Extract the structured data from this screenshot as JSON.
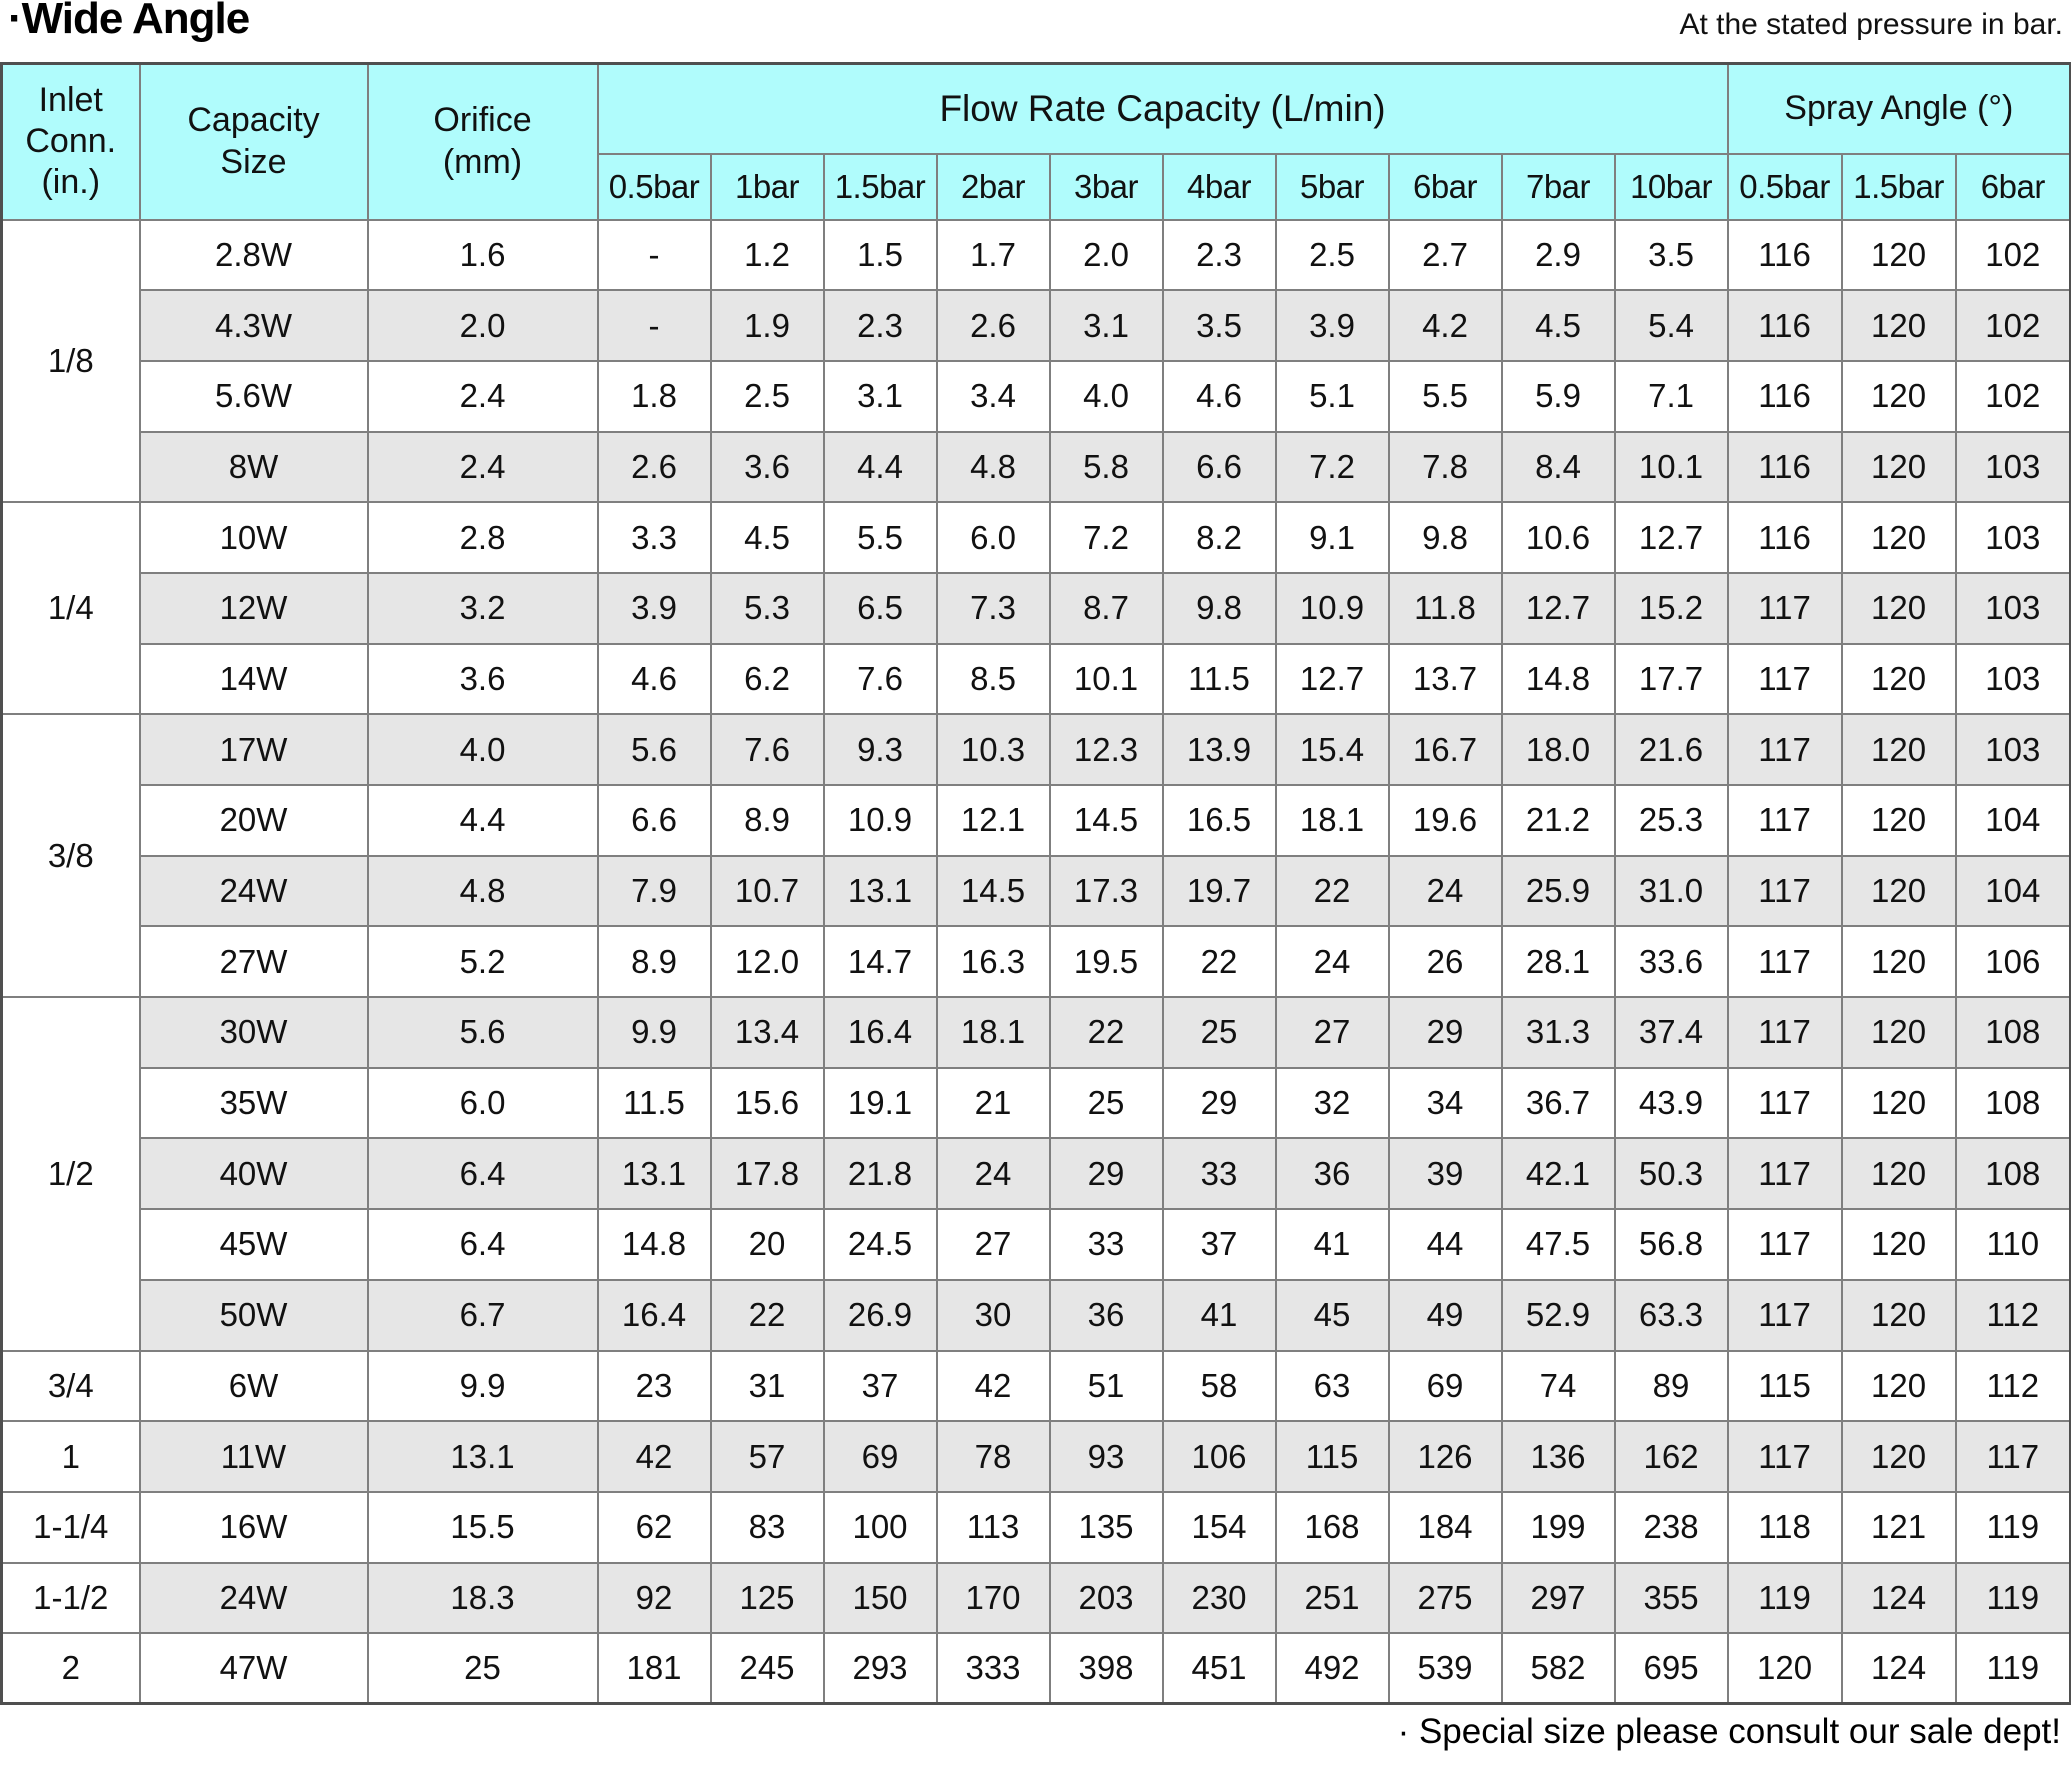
{
  "page": {
    "title": "·Wide Angle",
    "top_note": "At the stated pressure in bar.",
    "bottom_note": "· Special size please consult our sale dept!"
  },
  "colors": {
    "header_bg": "#b0fcfc",
    "stripe_bg": "#e6e6e6",
    "border": "#7f7f7f",
    "outer_border": "#4f4f4f"
  },
  "table": {
    "headers": {
      "inlet": "Inlet Conn. (in.)",
      "capacity": "Capacity Size",
      "orifice": "Orifice (mm)",
      "flow_group": "Flow Rate Capacity (L/min)",
      "spray_group": "Spray Angle (°)",
      "flow_cols": [
        "0.5bar",
        "1bar",
        "1.5bar",
        "2bar",
        "3bar",
        "4bar",
        "5bar",
        "6bar",
        "7bar",
        "10bar"
      ],
      "spray_cols": [
        "0.5bar",
        "1.5bar",
        "6bar"
      ]
    },
    "groups": [
      {
        "inlet": "1/8",
        "rows": [
          {
            "capacity": "2.8W",
            "orifice": "1.6",
            "flow": [
              "-",
              "1.2",
              "1.5",
              "1.7",
              "2.0",
              "2.3",
              "2.5",
              "2.7",
              "2.9",
              "3.5"
            ],
            "spray": [
              "116",
              "120",
              "102"
            ]
          },
          {
            "capacity": "4.3W",
            "orifice": "2.0",
            "flow": [
              "-",
              "1.9",
              "2.3",
              "2.6",
              "3.1",
              "3.5",
              "3.9",
              "4.2",
              "4.5",
              "5.4"
            ],
            "spray": [
              "116",
              "120",
              "102"
            ]
          },
          {
            "capacity": "5.6W",
            "orifice": "2.4",
            "flow": [
              "1.8",
              "2.5",
              "3.1",
              "3.4",
              "4.0",
              "4.6",
              "5.1",
              "5.5",
              "5.9",
              "7.1"
            ],
            "spray": [
              "116",
              "120",
              "102"
            ]
          },
          {
            "capacity": "8W",
            "orifice": "2.4",
            "flow": [
              "2.6",
              "3.6",
              "4.4",
              "4.8",
              "5.8",
              "6.6",
              "7.2",
              "7.8",
              "8.4",
              "10.1"
            ],
            "spray": [
              "116",
              "120",
              "103"
            ]
          }
        ]
      },
      {
        "inlet": "1/4",
        "rows": [
          {
            "capacity": "10W",
            "orifice": "2.8",
            "flow": [
              "3.3",
              "4.5",
              "5.5",
              "6.0",
              "7.2",
              "8.2",
              "9.1",
              "9.8",
              "10.6",
              "12.7"
            ],
            "spray": [
              "116",
              "120",
              "103"
            ]
          },
          {
            "capacity": "12W",
            "orifice": "3.2",
            "flow": [
              "3.9",
              "5.3",
              "6.5",
              "7.3",
              "8.7",
              "9.8",
              "10.9",
              "11.8",
              "12.7",
              "15.2"
            ],
            "spray": [
              "117",
              "120",
              "103"
            ]
          },
          {
            "capacity": "14W",
            "orifice": "3.6",
            "flow": [
              "4.6",
              "6.2",
              "7.6",
              "8.5",
              "10.1",
              "11.5",
              "12.7",
              "13.7",
              "14.8",
              "17.7"
            ],
            "spray": [
              "117",
              "120",
              "103"
            ]
          }
        ]
      },
      {
        "inlet": "3/8",
        "rows": [
          {
            "capacity": "17W",
            "orifice": "4.0",
            "flow": [
              "5.6",
              "7.6",
              "9.3",
              "10.3",
              "12.3",
              "13.9",
              "15.4",
              "16.7",
              "18.0",
              "21.6"
            ],
            "spray": [
              "117",
              "120",
              "103"
            ]
          },
          {
            "capacity": "20W",
            "orifice": "4.4",
            "flow": [
              "6.6",
              "8.9",
              "10.9",
              "12.1",
              "14.5",
              "16.5",
              "18.1",
              "19.6",
              "21.2",
              "25.3"
            ],
            "spray": [
              "117",
              "120",
              "104"
            ]
          },
          {
            "capacity": "24W",
            "orifice": "4.8",
            "flow": [
              "7.9",
              "10.7",
              "13.1",
              "14.5",
              "17.3",
              "19.7",
              "22",
              "24",
              "25.9",
              "31.0"
            ],
            "spray": [
              "117",
              "120",
              "104"
            ]
          },
          {
            "capacity": "27W",
            "orifice": "5.2",
            "flow": [
              "8.9",
              "12.0",
              "14.7",
              "16.3",
              "19.5",
              "22",
              "24",
              "26",
              "28.1",
              "33.6"
            ],
            "spray": [
              "117",
              "120",
              "106"
            ]
          }
        ]
      },
      {
        "inlet": "1/2",
        "rows": [
          {
            "capacity": "30W",
            "orifice": "5.6",
            "flow": [
              "9.9",
              "13.4",
              "16.4",
              "18.1",
              "22",
              "25",
              "27",
              "29",
              "31.3",
              "37.4"
            ],
            "spray": [
              "117",
              "120",
              "108"
            ]
          },
          {
            "capacity": "35W",
            "orifice": "6.0",
            "flow": [
              "11.5",
              "15.6",
              "19.1",
              "21",
              "25",
              "29",
              "32",
              "34",
              "36.7",
              "43.9"
            ],
            "spray": [
              "117",
              "120",
              "108"
            ]
          },
          {
            "capacity": "40W",
            "orifice": "6.4",
            "flow": [
              "13.1",
              "17.8",
              "21.8",
              "24",
              "29",
              "33",
              "36",
              "39",
              "42.1",
              "50.3"
            ],
            "spray": [
              "117",
              "120",
              "108"
            ]
          },
          {
            "capacity": "45W",
            "orifice": "6.4",
            "flow": [
              "14.8",
              "20",
              "24.5",
              "27",
              "33",
              "37",
              "41",
              "44",
              "47.5",
              "56.8"
            ],
            "spray": [
              "117",
              "120",
              "110"
            ]
          },
          {
            "capacity": "50W",
            "orifice": "6.7",
            "flow": [
              "16.4",
              "22",
              "26.9",
              "30",
              "36",
              "41",
              "45",
              "49",
              "52.9",
              "63.3"
            ],
            "spray": [
              "117",
              "120",
              "112"
            ]
          }
        ]
      },
      {
        "inlet": "3/4",
        "rows": [
          {
            "capacity": "6W",
            "orifice": "9.9",
            "flow": [
              "23",
              "31",
              "37",
              "42",
              "51",
              "58",
              "63",
              "69",
              "74",
              "89"
            ],
            "spray": [
              "115",
              "120",
              "112"
            ]
          }
        ]
      },
      {
        "inlet": "1",
        "rows": [
          {
            "capacity": "11W",
            "orifice": "13.1",
            "flow": [
              "42",
              "57",
              "69",
              "78",
              "93",
              "106",
              "115",
              "126",
              "136",
              "162"
            ],
            "spray": [
              "117",
              "120",
              "117"
            ]
          }
        ]
      },
      {
        "inlet": "1-1/4",
        "rows": [
          {
            "capacity": "16W",
            "orifice": "15.5",
            "flow": [
              "62",
              "83",
              "100",
              "113",
              "135",
              "154",
              "168",
              "184",
              "199",
              "238"
            ],
            "spray": [
              "118",
              "121",
              "119"
            ]
          }
        ]
      },
      {
        "inlet": "1-1/2",
        "rows": [
          {
            "capacity": "24W",
            "orifice": "18.3",
            "flow": [
              "92",
              "125",
              "150",
              "170",
              "203",
              "230",
              "251",
              "275",
              "297",
              "355"
            ],
            "spray": [
              "119",
              "124",
              "119"
            ]
          }
        ]
      },
      {
        "inlet": "2",
        "rows": [
          {
            "capacity": "47W",
            "orifice": "25",
            "flow": [
              "181",
              "245",
              "293",
              "333",
              "398",
              "451",
              "492",
              "539",
              "582",
              "695"
            ],
            "spray": [
              "120",
              "124",
              "119"
            ]
          }
        ]
      }
    ]
  }
}
